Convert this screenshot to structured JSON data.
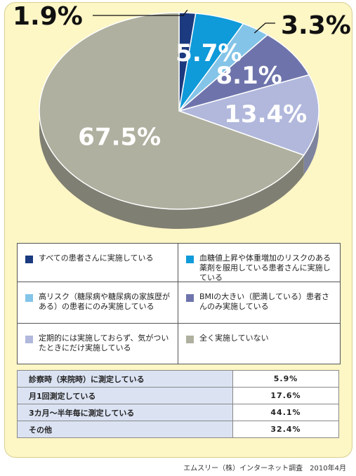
{
  "chart_data": {
    "type": "pie",
    "slices": [
      {
        "label": "すべての患者さんに実施している",
        "value": 1.9,
        "value_label": "1.9%",
        "color": "#1b3a7f"
      },
      {
        "label": "血糖値上昇や体重増加のリスクのある薬剤を服用している患者さんに実施している",
        "value": 5.7,
        "value_label": "5.7%",
        "color": "#0f9ad9"
      },
      {
        "label": "高リスク（糖尿病や糖尿病の家族歴がある）の患者にのみ実施している",
        "value": 3.3,
        "value_label": "3.3%",
        "color": "#84c4e8"
      },
      {
        "label": "BMIの大きい（肥満している）患者さんのみ実施している",
        "value": 8.1,
        "value_label": "8.1%",
        "color": "#6e74ab"
      },
      {
        "label": "定期的には実施しておらず、気がついたときにだけ実施している",
        "value": 13.4,
        "value_label": "13.4%",
        "color": "#b1b8dc"
      },
      {
        "label": "全く実施していない",
        "value": 67.5,
        "value_label": "67.5%",
        "color": "#b0b0a0"
      }
    ]
  },
  "legend": [
    {
      "text": "すべての患者さんに実施している",
      "color": "#1b3a7f"
    },
    {
      "text": "血糖値上昇や体重増加のリスクのある薬剤を服用している患者さんに実施している",
      "color": "#0f9ad9"
    },
    {
      "text": "高リスク（糖尿病や糖尿病の家族歴がある）の患者にのみ実施している",
      "color": "#84c4e8"
    },
    {
      "text": "BMIの大きい（肥満している）患者さんのみ実施している",
      "color": "#6e74ab"
    },
    {
      "text": "定期的には実施しておらず、気がついたときにだけ実施している",
      "color": "#b1b8dc"
    },
    {
      "text": "全く実施していない",
      "color": "#b0b0a0"
    }
  ],
  "table": {
    "rows": [
      {
        "label": "診察時（来院時）に測定している",
        "value": "5.9%"
      },
      {
        "label": "月1回測定している",
        "value": "17.6%"
      },
      {
        "label": "3カ月～半年毎に測定している",
        "value": "44.1%"
      },
      {
        "label": "その他",
        "value": "32.4%"
      }
    ]
  },
  "source": "エムスリー（株）インターネット調査　2010年4月"
}
